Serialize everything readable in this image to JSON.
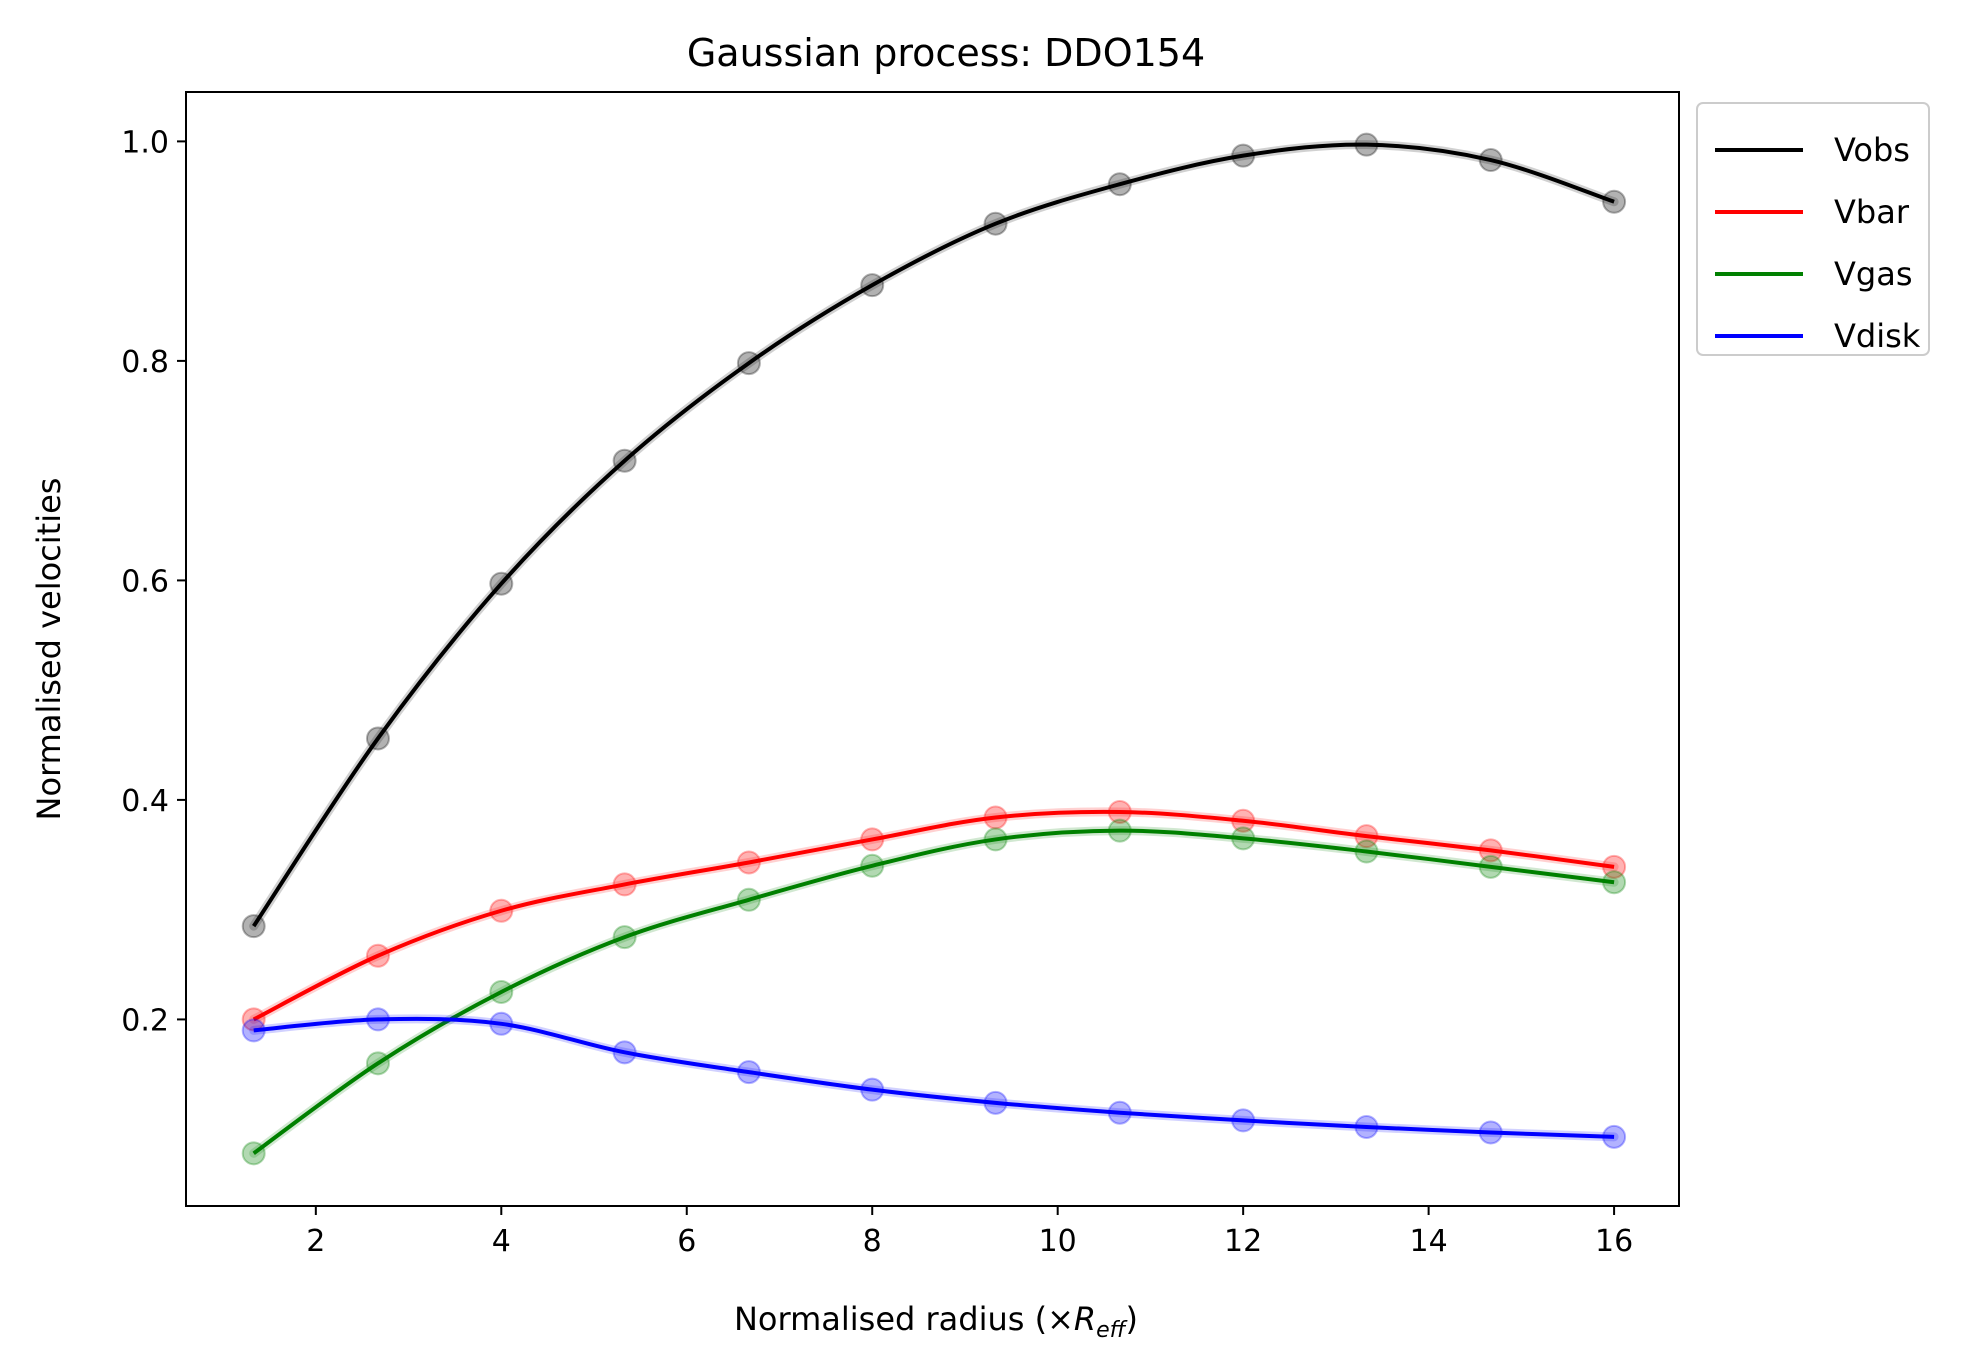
{
  "chart_data": {
    "type": "line",
    "title": "Gaussian process: DDO154",
    "xlabel_main": "Normalised radius (×",
    "xlabel_sym": "R",
    "xlabel_sub": "eff",
    "xlabel_close": ")",
    "ylabel": "Normalised velocities",
    "xlim": [
      0.6,
      16.7
    ],
    "ylim": [
      0.03,
      1.045
    ],
    "xticks": [
      2,
      4,
      6,
      8,
      10,
      12,
      14,
      16
    ],
    "yticks": [
      0.2,
      0.4,
      0.6,
      0.8,
      1.0
    ],
    "ytick_labels": [
      "0.2",
      "0.4",
      "0.6",
      "0.8",
      "1.0"
    ],
    "grid": false,
    "legend_position": "outside-top-right",
    "x": [
      1.33,
      2.67,
      4.0,
      5.33,
      6.67,
      8.0,
      9.33,
      10.67,
      12.0,
      13.33,
      14.67,
      16.0
    ],
    "series": [
      {
        "name": "Vobs",
        "color": "#000000",
        "values": [
          0.285,
          0.456,
          0.597,
          0.709,
          0.798,
          0.869,
          0.925,
          0.961,
          0.987,
          0.997,
          0.983,
          0.945
        ]
      },
      {
        "name": "Vbar",
        "color": "#ff0000",
        "values": [
          0.2,
          0.258,
          0.299,
          0.323,
          0.343,
          0.364,
          0.384,
          0.389,
          0.381,
          0.367,
          0.354,
          0.339
        ]
      },
      {
        "name": "Vgas",
        "color": "#008000",
        "values": [
          0.078,
          0.16,
          0.225,
          0.275,
          0.309,
          0.34,
          0.364,
          0.372,
          0.365,
          0.353,
          0.339,
          0.325
        ]
      },
      {
        "name": "Vdisk",
        "color": "#0000ff",
        "values": [
          0.19,
          0.2,
          0.196,
          0.17,
          0.152,
          0.136,
          0.124,
          0.115,
          0.108,
          0.102,
          0.097,
          0.093
        ]
      }
    ]
  }
}
